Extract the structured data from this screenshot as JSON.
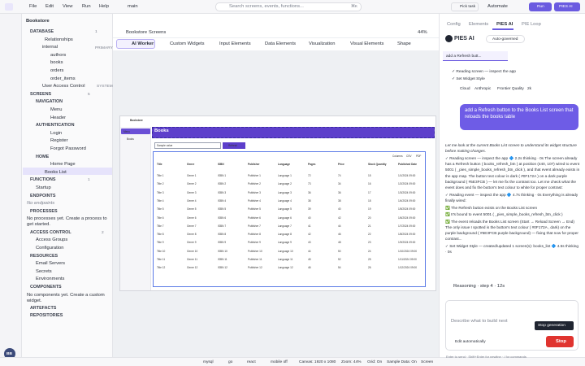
{
  "menu": [
    "File",
    "Edit",
    "View",
    "Run",
    "Help"
  ],
  "branch": "main",
  "search": {
    "placeholder": "Search screens, events, functions...",
    "shortcut": "⌘K"
  },
  "topbar": {
    "task": "Pick task",
    "automate": "Automate",
    "run": "Run",
    "ai": "PIES AI"
  },
  "rail": {
    "avatar": "BB"
  },
  "sidebar": {
    "title": "Bookstore",
    "database": {
      "title": "DATABASE",
      "count": "1",
      "relationships": "Relationships",
      "schema": "internal",
      "schema_tag": "PRIMARY",
      "tables": [
        "authors",
        "books",
        "orders",
        "order_items"
      ],
      "uac": "User Access Control",
      "uac_tag": "SYSTEM"
    },
    "screens": {
      "title": "SCREENS",
      "count": "5",
      "groups": [
        {
          "title": "NAVIGATION",
          "items": [
            "Menu",
            "Header"
          ]
        },
        {
          "title": "AUTHENTICATION",
          "items": [
            "Login",
            "Register",
            "Forgot Password"
          ]
        },
        {
          "title": "HOME",
          "items": [
            "Home Page",
            "Books List"
          ]
        }
      ]
    },
    "functions": {
      "title": "FUNCTIONS",
      "count": "1",
      "items": [
        "Startup"
      ]
    },
    "endpoints": {
      "title": "ENDPOINTS",
      "empty": "No endpoints"
    },
    "processes": {
      "title": "PROCESSES",
      "empty": "No processes yet. Create a process to get started."
    },
    "access": {
      "title": "ACCESS CONTROL",
      "count": "2",
      "items": [
        "Access Groups",
        "Configuration"
      ]
    },
    "resources": {
      "title": "RESOURCES",
      "items": [
        "Email Servers",
        "Secrets",
        "Environments"
      ]
    },
    "components": {
      "title": "COMPONENTS",
      "empty": "No components yet. Create a custom widget."
    },
    "artefacts": {
      "title": "ARTEFACTS"
    },
    "repositories": {
      "title": "REPOSITORIES"
    }
  },
  "editor": {
    "breadcrumb": [
      "Bookstore",
      "Screens"
    ],
    "zoom": "44%",
    "toolbar": [
      "AI Worker",
      "Custom Widgets",
      "Input Elements",
      "Data Elements",
      "Visualization",
      "Visual Elements",
      "Shape"
    ]
  },
  "preview": {
    "app": "Bookstore",
    "nav": [
      "Menu",
      "Books"
    ],
    "heading": "Books",
    "input": "Sample value",
    "button": "Refresh",
    "table_tools": [
      "Columns",
      "CSV",
      "PDF"
    ],
    "columns": [
      "Title",
      "Genre",
      "ISBN",
      "Publisher",
      "Language",
      "Pages",
      "Price",
      "Stock Quantity",
      "Published Date"
    ],
    "rows": [
      [
        "Title 1",
        "Genre 1",
        "ISBN 1",
        "Publisher 1",
        "Language 1",
        "72",
        "74",
        "15",
        "1/1/2024 09:00"
      ],
      [
        "Title 2",
        "Genre 2",
        "ISBN 2",
        "Publisher 2",
        "Language 2",
        "73",
        "34",
        "16",
        "1/2/2024 09:00"
      ],
      [
        "Title 3",
        "Genre 3",
        "ISBN 3",
        "Publisher 3",
        "Language 3",
        "36",
        "36",
        "17",
        "1/3/2024 09:00"
      ],
      [
        "Title 4",
        "Genre 4",
        "ISBN 4",
        "Publisher 4",
        "Language 4",
        "38",
        "38",
        "18",
        "1/4/2024 09:00"
      ],
      [
        "Title 5",
        "Genre 5",
        "ISBN 5",
        "Publisher 5",
        "Language 5",
        "39",
        "40",
        "19",
        "1/5/2024 09:00"
      ],
      [
        "Title 6",
        "Genre 6",
        "ISBN 6",
        "Publisher 6",
        "Language 6",
        "40",
        "42",
        "20",
        "1/6/2024 09:00"
      ],
      [
        "Title 7",
        "Genre 7",
        "ISBN 7",
        "Publisher 7",
        "Language 7",
        "41",
        "44",
        "21",
        "1/7/2024 09:00"
      ],
      [
        "Title 8",
        "Genre 8",
        "ISBN 8",
        "Publisher 8",
        "Language 8",
        "42",
        "46",
        "22",
        "1/8/2024 09:00"
      ],
      [
        "Title 9",
        "Genre 9",
        "ISBN 9",
        "Publisher 9",
        "Language 9",
        "43",
        "48",
        "23",
        "1/9/2024 09:00"
      ],
      [
        "Title 10",
        "Genre 10",
        "ISBN 10",
        "Publisher 10",
        "Language 10",
        "44",
        "50",
        "24",
        "1/10/2024 09:00"
      ],
      [
        "Title 11",
        "Genre 11",
        "ISBN 11",
        "Publisher 11",
        "Language 11",
        "45",
        "52",
        "25",
        "1/11/2024 09:00"
      ],
      [
        "Title 12",
        "Genre 12",
        "ISBN 12",
        "Publisher 12",
        "Language 12",
        "46",
        "54",
        "26",
        "1/12/2024 09:00"
      ]
    ]
  },
  "panel": {
    "tabs": [
      "Config",
      "Elements",
      "PIES AI",
      "PIE Loop"
    ],
    "title": "PIES AI",
    "mode": "Auto-governed",
    "chat_tab": "add a Refresh butt...",
    "steps": [
      "✓ Reading screen — inspect the app",
      "✓ Set Widget Style"
    ],
    "chips": [
      "Cloud",
      "Anthropic",
      "Frontier Quality",
      "2k"
    ],
    "user": "add a Refresh button to the Books List screen that reloads the books table",
    "reply": [
      "Let me look at the current Books List screen to understand its widget structure before making changes.",
      "✓ Reading screen — inspect the app 🔷 2.2s thinking · 0s The screen already has a Refresh button ( books_refresh_btn ) at position (440, 107) wired to event 5001 ( _pies_simple_books_refresh_btn_click ), and that event already exists in the app map. The button text colour is dark ( #0F172A ) on a dark purple background ( #5E3FCB ) — let me fix the contrast too. Let me check what the event does and fix the button's text colour to white for proper contrast:",
      "✓ Reading event — inspect the app 🔷 4.7s thinking · 0s Everything is already finally wired:",
      "✅ The Refresh button exists on the Books List screen",
      "✅ It's bound to event 5001 ( _pies_simple_books_refresh_btn_click )",
      "✅ The event reloads the Books List screen (Start → Reload Screen → End) The only issue I spotted is the button's text colour ( #0F172A , dark) on the purple background ( #5E3FCB purple background) — fixing that now for proper contrast...",
      "✓ Set Widget Style — created/updated 1 screen(s): books_list 🔷 4.5s thinking · 0s"
    ],
    "reasoning": "Reasoning · step 4 · 12s",
    "placeholder": "Describe what to build next",
    "edit": "Edit automatically",
    "tooltip": "Stop generation",
    "stop": "Stop",
    "hint": "Enter to send · Shift+Enter for newline · / for commands"
  },
  "status": [
    "mysql",
    "go",
    "react",
    "mobile off",
    "Canvas: 1920 x 1080",
    "Zoom: 44%",
    "Grid: On",
    "Sample Data: On",
    "Screen"
  ]
}
